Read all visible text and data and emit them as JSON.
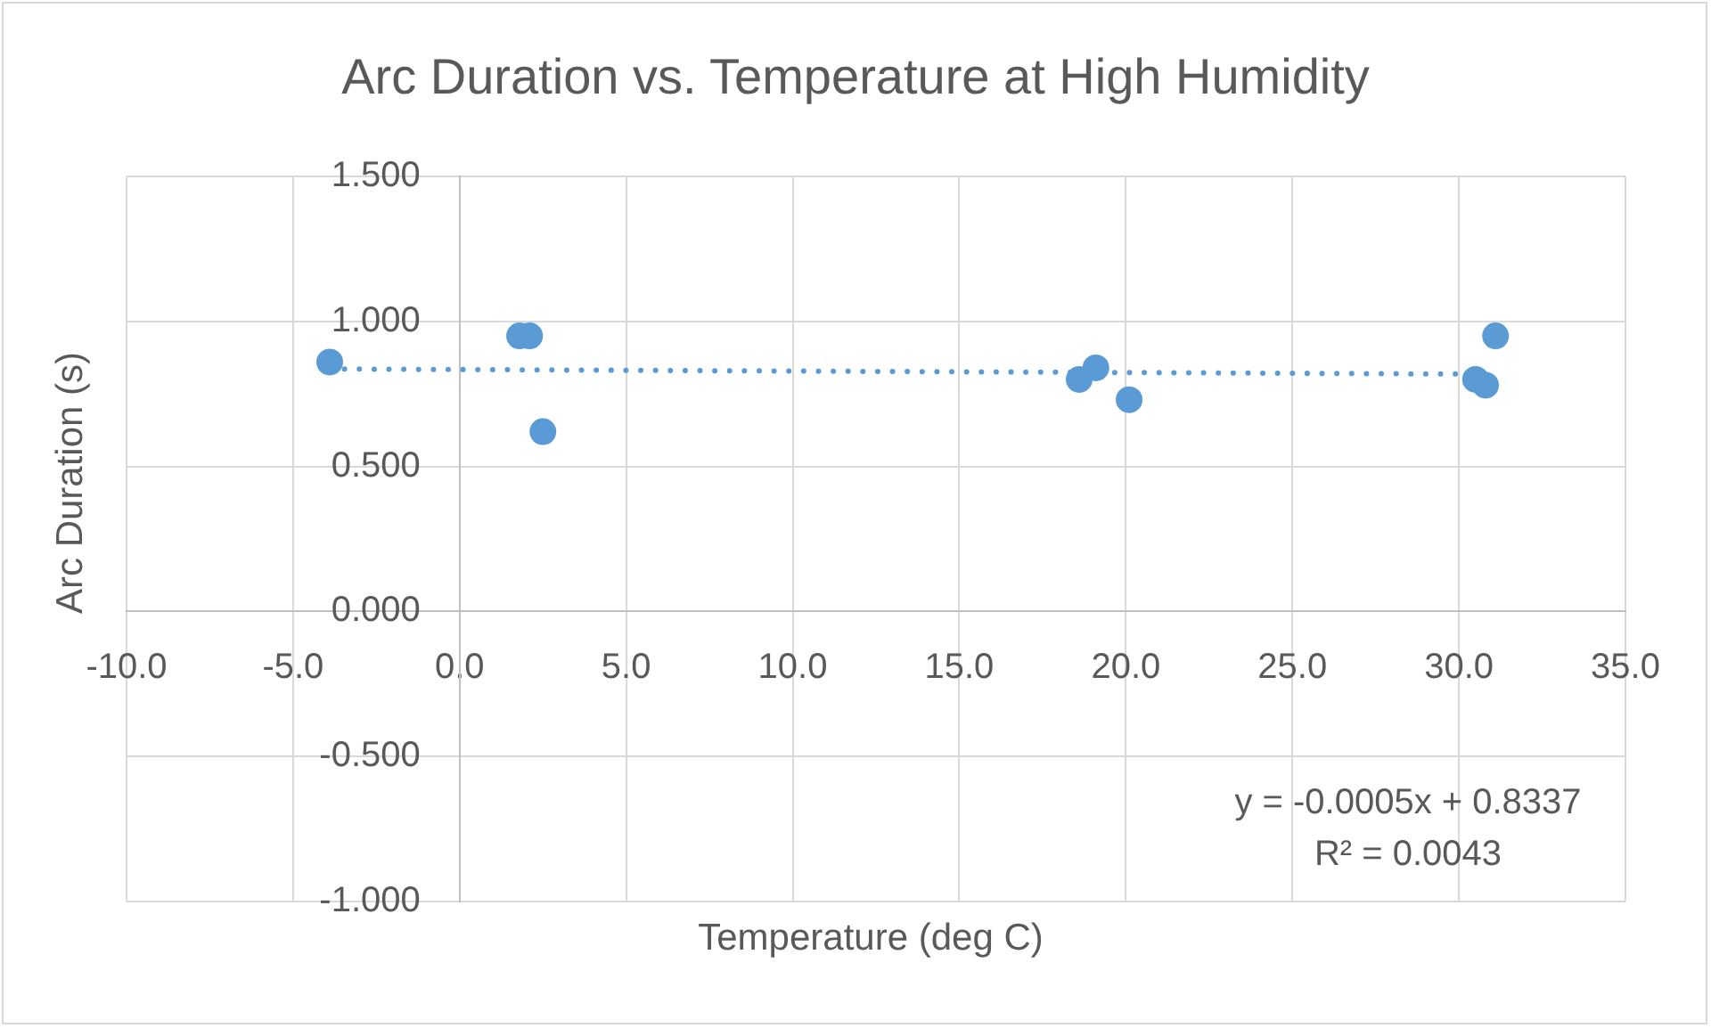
{
  "chart_data": {
    "type": "scatter",
    "title": "Arc Duration vs. Temperature at High Humidity",
    "xlabel": "Temperature (deg C)",
    "ylabel": "Arc Duration (s)",
    "series": [
      {
        "color": "#5b9bd5",
        "x": [
          -3.9,
          1.8,
          2.1,
          2.5,
          18.6,
          19.1,
          20.1,
          30.5,
          30.8,
          31.1
        ],
        "values": [
          0.86,
          0.95,
          0.95,
          0.62,
          0.8,
          0.84,
          0.73,
          0.8,
          0.78,
          0.95
        ]
      },
      {
        "type": "line",
        "color": "#5b9bd5",
        "x": [
          -3.9,
          31.1
        ],
        "values": [
          0.836,
          0.818
        ],
        "marker": "none",
        "line_style": "dotted"
      }
    ],
    "xlim": [
      -10,
      35
    ],
    "xticks": [
      {
        "value": -10,
        "label": "-10.0"
      },
      {
        "value": -5,
        "label": "-5.0"
      },
      {
        "value": 0,
        "label": "0.0"
      },
      {
        "value": 5,
        "label": "5.0"
      },
      {
        "value": 10,
        "label": "10.0"
      },
      {
        "value": 15,
        "label": "15.0"
      },
      {
        "value": 20,
        "label": "20.0"
      },
      {
        "value": 25,
        "label": "25.0"
      },
      {
        "value": 30,
        "label": "30.0"
      },
      {
        "value": 35,
        "label": "35.0"
      }
    ],
    "ylim": [
      -1,
      1.5
    ],
    "yticks": [
      {
        "value": -1,
        "label": "-1.000"
      },
      {
        "value": -0.5,
        "label": "-0.500"
      },
      {
        "value": 0,
        "label": "0.000"
      },
      {
        "value": 0.5,
        "label": "0.500"
      },
      {
        "value": 1,
        "label": "1.000"
      },
      {
        "value": 1.5,
        "label": "1.500"
      }
    ],
    "grid": true,
    "legend": false,
    "marker": "circle",
    "annotations": [
      "y = -0.0005x + 0.8337",
      "R² = 0.0043"
    ]
  }
}
